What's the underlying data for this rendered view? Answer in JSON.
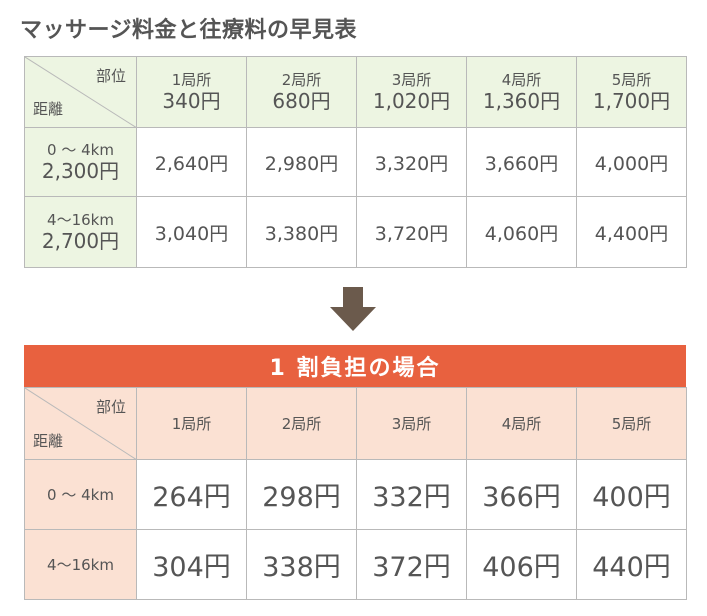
{
  "title": "マッサージ料金と往療料の早見表",
  "corner": {
    "top": "部位",
    "bottom": "距離"
  },
  "table1": {
    "headers": [
      {
        "part": "1局所",
        "price": "340円"
      },
      {
        "part": "2局所",
        "price": "680円"
      },
      {
        "part": "3局所",
        "price": "1,020円"
      },
      {
        "part": "4局所",
        "price": "1,360円"
      },
      {
        "part": "5局所",
        "price": "1,700円"
      }
    ],
    "rows": [
      {
        "distance": "0 ～ 4km",
        "fee": "2,300円",
        "values": [
          "2,640円",
          "2,980円",
          "3,320円",
          "3,660円",
          "4,000円"
        ]
      },
      {
        "distance": "4～16km",
        "fee": "2,700円",
        "values": [
          "3,040円",
          "3,380円",
          "3,720円",
          "4,060円",
          "4,400円"
        ]
      }
    ]
  },
  "banner": "1 割負担の場合",
  "table2": {
    "headers": [
      "1局所",
      "2局所",
      "3局所",
      "4局所",
      "5局所"
    ],
    "rows": [
      {
        "distance": "0 ～ 4km",
        "values": [
          "264円",
          "298円",
          "332円",
          "366円",
          "400円"
        ]
      },
      {
        "distance": "4～16km",
        "values": [
          "304円",
          "338円",
          "372円",
          "406円",
          "440円"
        ]
      }
    ]
  },
  "colors": {
    "green_header": "#edf5e2",
    "peach_header": "#fbe1d3",
    "banner": "#e8613f",
    "arrow": "#6b5a4c",
    "text": "#555555"
  }
}
